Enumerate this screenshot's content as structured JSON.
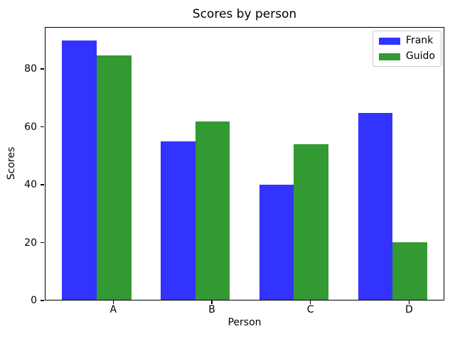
{
  "chart_data": {
    "type": "bar",
    "title": "Scores by person",
    "xlabel": "Person",
    "ylabel": "Scores",
    "categories": [
      "A",
      "B",
      "C",
      "D"
    ],
    "series": [
      {
        "name": "Frank",
        "color": "#3333ff",
        "values": [
          90,
          55,
          40,
          65
        ]
      },
      {
        "name": "Guido",
        "color": "#339933",
        "values": [
          85,
          62,
          54,
          20
        ]
      }
    ],
    "ylim": [
      0,
      94.5
    ],
    "yticks": [
      0,
      20,
      40,
      60,
      80
    ],
    "bar_width_fraction": 0.35,
    "grid": false,
    "legend_position": "upper right"
  }
}
